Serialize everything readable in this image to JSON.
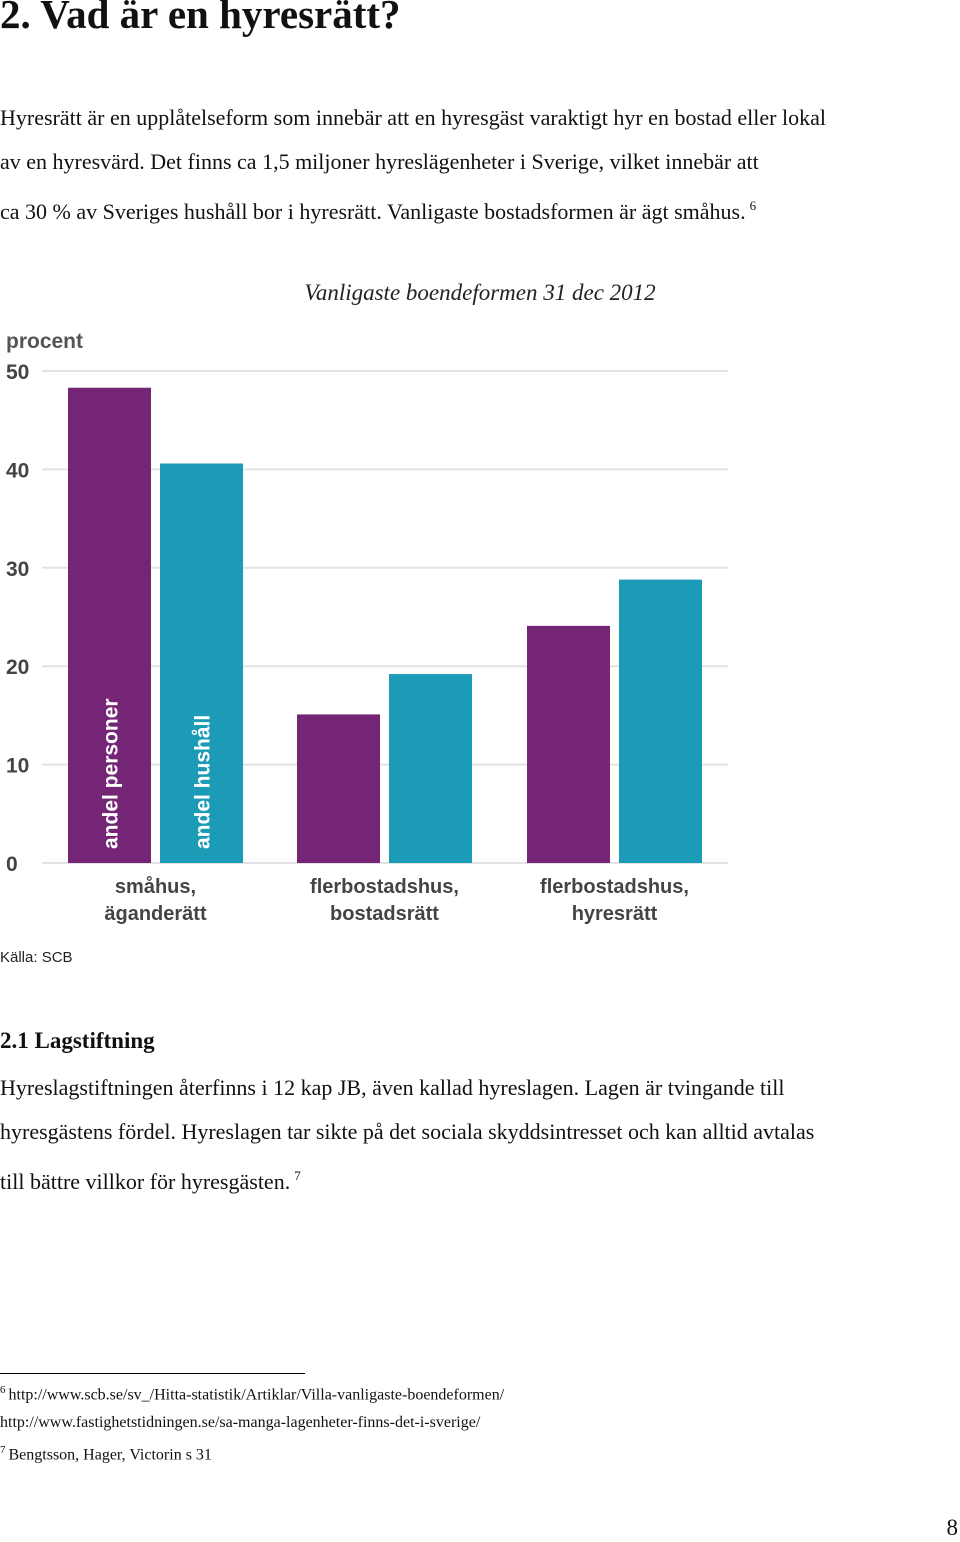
{
  "heading": "2. Vad är en hyresrätt?",
  "intro": {
    "lines": [
      "Hyresrätt är en upplåtelseform som innebär att en hyresgäst varaktigt hyr en bostad eller lokal",
      "av en hyresvärd. Det finns ca 1,5 miljoner hyreslägenheter i Sverige, vilket innebär att",
      "ca 30 % av Sveriges hushåll bor i hyresrätt. Vanligaste bostadsformen är ägt småhus."
    ],
    "footnote_ref": "6"
  },
  "chart_title": "Vanligaste boendeformen 31 dec 2012",
  "chart_data": {
    "type": "bar",
    "ylabel": "procent",
    "ylim": [
      0,
      50
    ],
    "yticks": [
      "0",
      "10",
      "20",
      "30",
      "40",
      "50"
    ],
    "grid": true,
    "categories": [
      [
        "småhus,",
        "äganderätt"
      ],
      [
        "flerbostadshus,",
        "bostadsrätt"
      ],
      [
        "flerbostadshus,",
        "hyresrätt"
      ]
    ],
    "series": [
      {
        "name": "andel personer",
        "color": "#752575",
        "values": [
          48.3,
          15.1,
          24.1
        ]
      },
      {
        "name": "andel hushåll",
        "color": "#1b9bb5",
        "values": [
          40.6,
          19.2,
          28.8
        ]
      }
    ]
  },
  "source": "Källa: SCB",
  "subheading": "2.1 Lagstiftning",
  "section": {
    "lines": [
      "Hyreslagstiftningen återfinns i 12 kap JB, även kallad hyreslagen. Lagen är tvingande till",
      "hyresgästens fördel. Hyreslagen tar sikte på det sociala skyddsintresset och kan alltid avtalas",
      "till bättre villkor för hyresgästen."
    ],
    "footnote_ref": "7"
  },
  "footnotes": {
    "fn6_mark": "6",
    "fn6_line1": "http://www.scb.se/sv_/Hitta-statistik/Artiklar/Villa-vanligaste-boendeformen/",
    "fn6_line2": "http://www.fastighetstidningen.se/sa-manga-lagenheter-finns-det-i-sverige/",
    "fn7_mark": "7",
    "fn7_text": "Bengtsson, Hager, Victorin s 31"
  },
  "page_number": "8"
}
